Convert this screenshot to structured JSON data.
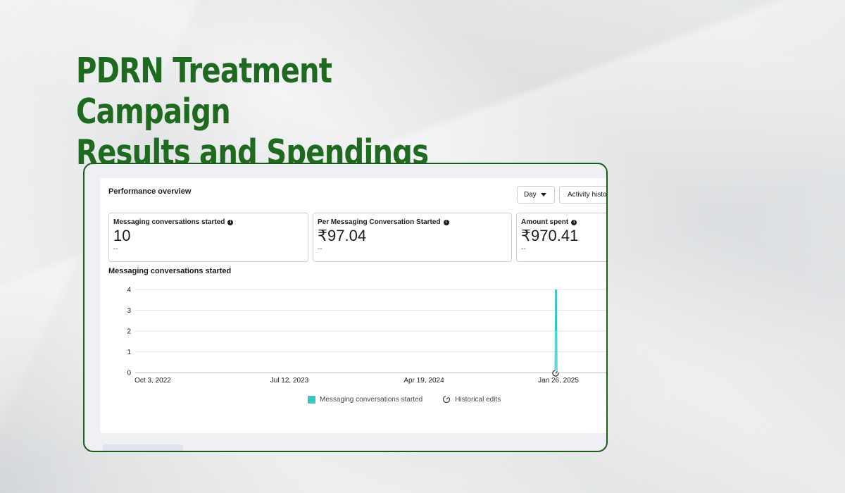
{
  "headline": {
    "line1": "PDRN Treatment Campaign",
    "line2": "Results and Spendings"
  },
  "panel": {
    "title": "Performance overview",
    "controls": {
      "day_label": "Day",
      "activity_label": "Activity history"
    },
    "metrics": [
      {
        "label": "Messaging conversations started",
        "value": "10",
        "sub": "--"
      },
      {
        "label": "Per Messaging Conversation Started",
        "value": "₹97.04",
        "sub": "--"
      },
      {
        "label": "Amount spent",
        "value": "₹970.41",
        "sub": "--"
      }
    ],
    "chart_title": "Messaging conversations started",
    "legend": {
      "series": "Messaging conversations started",
      "edits": "Historical edits"
    }
  },
  "colors": {
    "headline": "#1e6b1f",
    "frame_border": "#1f5a1c",
    "series": "#3bc6c4"
  },
  "chart_data": {
    "type": "line",
    "x_ticks": [
      "Oct 3, 2022",
      "Jul 12, 2023",
      "Apr 19, 2024",
      "Jan 26, 2025"
    ],
    "y_ticks": [
      0,
      1,
      2,
      3,
      4
    ],
    "ylim": [
      0,
      4
    ],
    "series": [
      {
        "name": "Messaging conversations started",
        "points": [
          {
            "x": "Jan 19, 2025",
            "y": 0
          },
          {
            "x": "Jan 20, 2025",
            "y": 4
          },
          {
            "x": "Jan 21, 2025",
            "y": 2
          },
          {
            "x": "Jan 22, 2025",
            "y": 4
          },
          {
            "x": "Jan 23, 2025",
            "y": 0
          }
        ]
      }
    ],
    "historical_edit_marker_x": "Jan 20, 2025",
    "grid": true
  }
}
